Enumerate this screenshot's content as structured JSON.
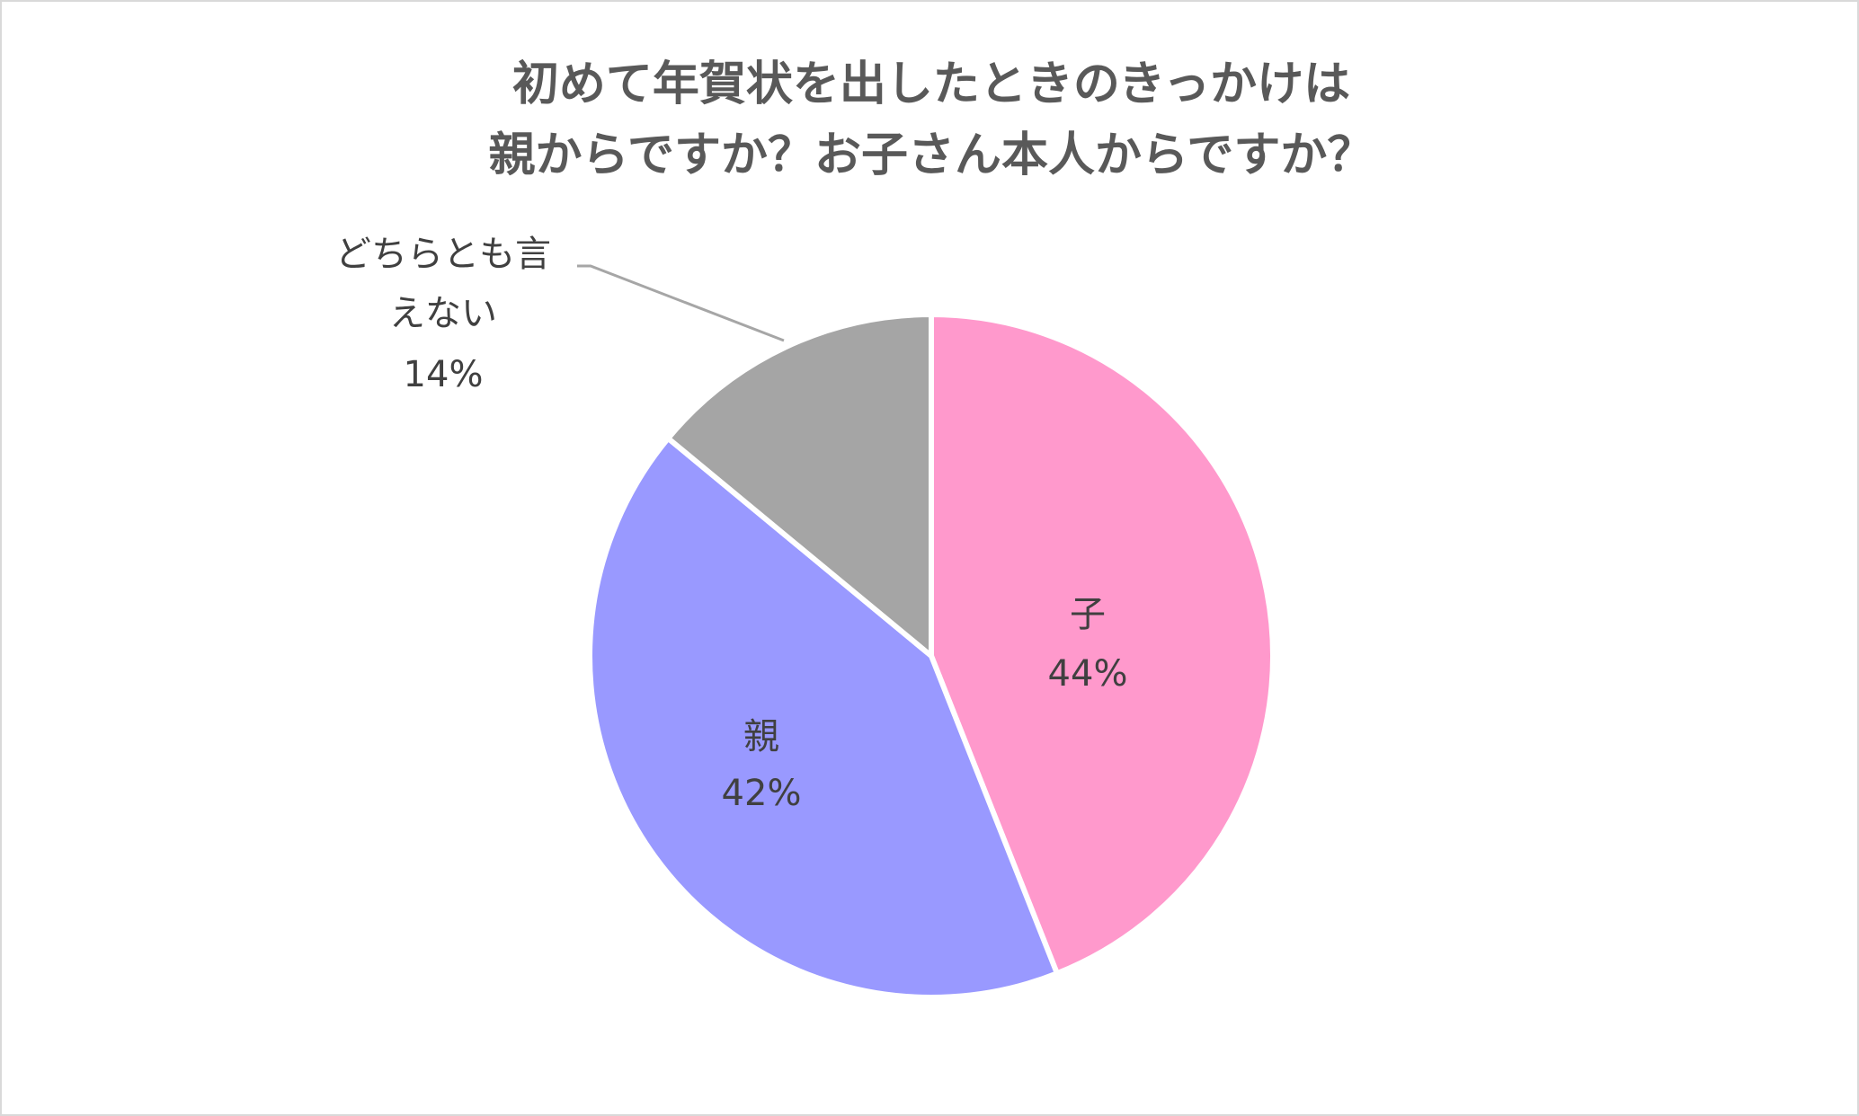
{
  "chart_data": {
    "type": "pie",
    "title": [
      "初めて年賀状を出したときのきっかけは",
      "親からですか？お子さん本人からですか？"
    ],
    "categories": [
      "子",
      "親",
      "どちらとも言えない"
    ],
    "values": [
      44,
      42,
      14
    ],
    "value_labels": [
      "44%",
      "42%",
      "14%"
    ],
    "colors": [
      "#FF99CC",
      "#9999FF",
      "#A5A5A5"
    ]
  }
}
